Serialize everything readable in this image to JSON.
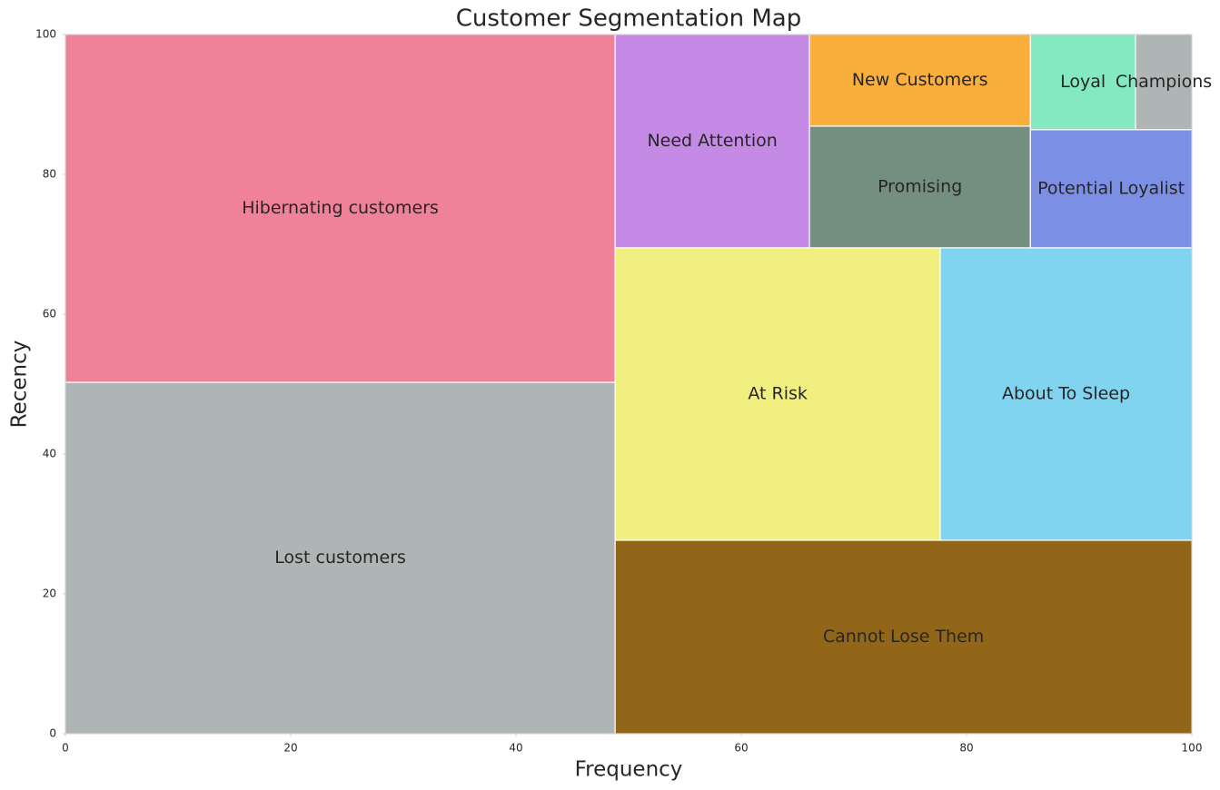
{
  "chart_data": {
    "type": "treemap",
    "title": "Customer Segmentation Map",
    "xlabel": "Frequency",
    "ylabel": "Recency",
    "xlim": [
      0,
      100
    ],
    "ylim": [
      0,
      100
    ],
    "xticks": [
      0,
      20,
      40,
      60,
      80,
      100
    ],
    "yticks": [
      0,
      20,
      40,
      60,
      80,
      100
    ],
    "categories": [
      "Lost customers",
      "Hibernating customers",
      "Cannot Lose Them",
      "At Risk",
      "About To Sleep",
      "Need Attention",
      "Promising",
      "New Customers",
      "Potential Loyalist",
      "Loyal",
      "Champions"
    ],
    "values": [
      2452,
      2427,
      1416,
      1207,
      934,
      526,
      341,
      257,
      242,
      127,
      68
    ],
    "colors": [
      "#afb5b5",
      "#ef8199",
      "#926619",
      "#f0ef7f",
      "#81d4f0",
      "#c48ae6",
      "#748f80",
      "#faae3c",
      "#7b8fe4",
      "#84e8c0",
      "#afb5b5"
    ]
  }
}
